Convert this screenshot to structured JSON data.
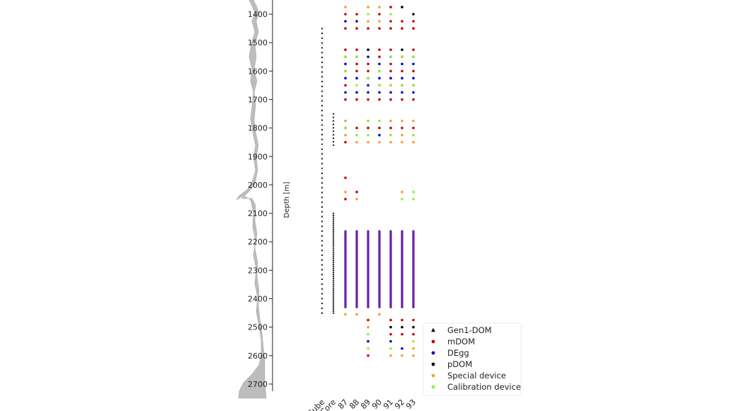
{
  "chart_data": {
    "type": "scatter",
    "title": "",
    "ylabel": "Depth [m]",
    "ylim": [
      1350,
      2725
    ],
    "y_inverted": true,
    "yticks": [
      1400,
      1500,
      1600,
      1700,
      1800,
      1900,
      2000,
      2100,
      2200,
      2300,
      2400,
      2500,
      2600,
      2700
    ],
    "categories": [
      "IceCube",
      "DeepCore",
      "87",
      "88",
      "89",
      "90",
      "91",
      "92",
      "93"
    ],
    "colors": {
      "Gen1-DOM": "#000000",
      "mDOM": "#cc0000",
      "DEgg": "#0000cc",
      "pDOM": "#000000",
      "Special device": "#f5a030",
      "Calibration device": "#90ee40",
      "dense_column": "#6a1fa8",
      "dust_profile": "#bdbdbd"
    },
    "legend": {
      "position": "lower-right",
      "entries": [
        {
          "name": "Gen1-DOM",
          "marker": "triangle"
        },
        {
          "name": "mDOM",
          "marker": "circle"
        },
        {
          "name": "DEgg",
          "marker": "circle"
        },
        {
          "name": "pDOM",
          "marker": "circle"
        },
        {
          "name": "Special device",
          "marker": "circle"
        },
        {
          "name": "Calibration device",
          "marker": "circle"
        }
      ]
    },
    "gen1_strings": [
      {
        "category": "IceCube",
        "from": 1450,
        "to": 2450,
        "count": 60
      },
      {
        "category": "DeepCore",
        "from": 1750,
        "to": 1860,
        "count": 10
      },
      {
        "category": "DeepCore",
        "from": 2100,
        "to": 2450,
        "count": 50
      }
    ],
    "dense_columns": [
      {
        "category": "87",
        "from": 2163,
        "to": 2430
      },
      {
        "category": "88",
        "from": 2163,
        "to": 2430
      },
      {
        "category": "89",
        "from": 2163,
        "to": 2430
      },
      {
        "category": "90",
        "from": 2163,
        "to": 2430
      },
      {
        "category": "91",
        "from": 2163,
        "to": 2430
      },
      {
        "category": "92",
        "from": 2163,
        "to": 2430
      },
      {
        "category": "93",
        "from": 2163,
        "to": 2430
      }
    ],
    "series": [
      {
        "name": "mDOM",
        "points": [
          [
            "87",
            1400
          ],
          [
            "87",
            1450
          ],
          [
            "87",
            1525
          ],
          [
            "87",
            1550
          ],
          [
            "87",
            1600
          ],
          [
            "87",
            1650
          ],
          [
            "87",
            1700
          ],
          [
            "87",
            1800
          ],
          [
            "87",
            1850
          ],
          [
            "87",
            1975
          ],
          [
            "87",
            2050
          ],
          [
            "88",
            1400
          ],
          [
            "88",
            1450
          ],
          [
            "88",
            1525
          ],
          [
            "88",
            1575
          ],
          [
            "88",
            1600
          ],
          [
            "88",
            1700
          ],
          [
            "88",
            1800
          ],
          [
            "88",
            2025
          ],
          [
            "89",
            1450
          ],
          [
            "89",
            1575
          ],
          [
            "89",
            1600
          ],
          [
            "89",
            1625
          ],
          [
            "89",
            1700
          ],
          [
            "89",
            1800
          ],
          [
            "89",
            2475
          ],
          [
            "89",
            2600
          ],
          [
            "90",
            1400
          ],
          [
            "90",
            1450
          ],
          [
            "90",
            1525
          ],
          [
            "90",
            1550
          ],
          [
            "90",
            1600
          ],
          [
            "90",
            1650
          ],
          [
            "90",
            1700
          ],
          [
            "90",
            1800
          ],
          [
            "91",
            1375
          ],
          [
            "91",
            1425
          ],
          [
            "91",
            1450
          ],
          [
            "91",
            1525
          ],
          [
            "91",
            1575
          ],
          [
            "91",
            1600
          ],
          [
            "91",
            1650
          ],
          [
            "91",
            1700
          ],
          [
            "91",
            1800
          ],
          [
            "91",
            2475
          ],
          [
            "91",
            2525
          ],
          [
            "92",
            1425
          ],
          [
            "92",
            1450
          ],
          [
            "92",
            1550
          ],
          [
            "92",
            1600
          ],
          [
            "92",
            1650
          ],
          [
            "92",
            1700
          ],
          [
            "92",
            1800
          ],
          [
            "92",
            2475
          ],
          [
            "92",
            2525
          ],
          [
            "93",
            1425
          ],
          [
            "93",
            1450
          ],
          [
            "93",
            1525
          ],
          [
            "93",
            1550
          ],
          [
            "93",
            1600
          ],
          [
            "93",
            1650
          ],
          [
            "93",
            1700
          ],
          [
            "93",
            1800
          ],
          [
            "93",
            2475
          ],
          [
            "93",
            2525
          ]
        ]
      },
      {
        "name": "DEgg",
        "points": [
          [
            "87",
            1425
          ],
          [
            "87",
            1575
          ],
          [
            "87",
            1625
          ],
          [
            "87",
            1675
          ],
          [
            "88",
            1425
          ],
          [
            "88",
            1550
          ],
          [
            "88",
            1625
          ],
          [
            "88",
            1675
          ],
          [
            "89",
            1550
          ],
          [
            "89",
            1650
          ],
          [
            "89",
            1675
          ],
          [
            "89",
            2550
          ],
          [
            "90",
            1575
          ],
          [
            "90",
            1625
          ],
          [
            "90",
            1675
          ],
          [
            "90",
            1825
          ],
          [
            "91",
            1550
          ],
          [
            "91",
            1625
          ],
          [
            "91",
            1675
          ],
          [
            "91",
            2550
          ],
          [
            "92",
            1575
          ],
          [
            "92",
            1625
          ],
          [
            "92",
            1675
          ],
          [
            "92",
            2575
          ],
          [
            "93",
            1575
          ],
          [
            "93",
            1625
          ],
          [
            "93",
            1675
          ]
        ]
      },
      {
        "name": "pDOM",
        "points": [
          [
            "89",
            1525
          ],
          [
            "92",
            1375
          ],
          [
            "92",
            1525
          ],
          [
            "93",
            1400
          ],
          [
            "91",
            2500
          ],
          [
            "92",
            2500
          ],
          [
            "93",
            2500
          ]
        ]
      },
      {
        "name": "Special device",
        "points": [
          [
            "87",
            1375
          ],
          [
            "87",
            1775
          ],
          [
            "87",
            1825
          ],
          [
            "87",
            2025
          ],
          [
            "87",
            2455
          ],
          [
            "88",
            1850
          ],
          [
            "88",
            2050
          ],
          [
            "88",
            2455
          ],
          [
            "89",
            1375
          ],
          [
            "89",
            1425
          ],
          [
            "89",
            1775
          ],
          [
            "89",
            1850
          ],
          [
            "89",
            2500
          ],
          [
            "90",
            1375
          ],
          [
            "90",
            1425
          ],
          [
            "90",
            1775
          ],
          [
            "90",
            1850
          ],
          [
            "90",
            2455
          ],
          [
            "91",
            1775
          ],
          [
            "91",
            1825
          ],
          [
            "91",
            1850
          ],
          [
            "91",
            2600
          ],
          [
            "92",
            1775
          ],
          [
            "92",
            1825
          ],
          [
            "92",
            1850
          ],
          [
            "92",
            2025
          ],
          [
            "92",
            2600
          ],
          [
            "93",
            1775
          ],
          [
            "93",
            1825
          ],
          [
            "93",
            1850
          ],
          [
            "93",
            2575
          ],
          [
            "93",
            2600
          ]
        ]
      },
      {
        "name": "Calibration device",
        "points": [
          [
            "87",
            1550
          ],
          [
            "87",
            1600
          ],
          [
            "87",
            1800
          ],
          [
            "88",
            1550
          ],
          [
            "88",
            1650
          ],
          [
            "88",
            1825
          ],
          [
            "89",
            1400
          ],
          [
            "89",
            1625
          ],
          [
            "89",
            1775
          ],
          [
            "89",
            1825
          ],
          [
            "89",
            2525
          ],
          [
            "89",
            2575
          ],
          [
            "90",
            1600
          ],
          [
            "90",
            1650
          ],
          [
            "90",
            1775
          ],
          [
            "91",
            1400
          ],
          [
            "91",
            1550
          ],
          [
            "91",
            1650
          ],
          [
            "91",
            1825
          ],
          [
            "91",
            2575
          ],
          [
            "92",
            1550
          ],
          [
            "92",
            1650
          ],
          [
            "92",
            2050
          ],
          [
            "93",
            1550
          ],
          [
            "93",
            1650
          ],
          [
            "93",
            1825
          ],
          [
            "93",
            2025
          ],
          [
            "93",
            2050
          ],
          [
            "93",
            2550
          ]
        ]
      }
    ]
  }
}
